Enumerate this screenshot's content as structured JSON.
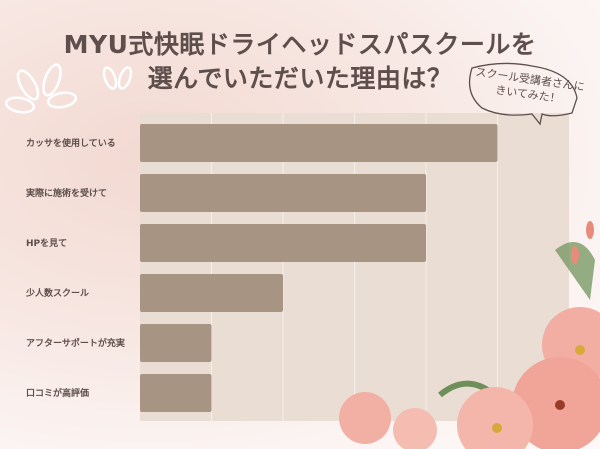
{
  "title_lines": [
    "MYU式快眠ドライヘッドスパスクールを",
    "選んでいただいた理由は？"
  ],
  "bubble": {
    "lines": [
      "スクール受講者さんに",
      "きいてみた！"
    ]
  },
  "colors": {
    "bar": "#a89483",
    "plot_bg": "#e9ddd4",
    "grid": "#f6f0ec",
    "title": "#5e4f4c"
  },
  "chart_data": {
    "type": "bar",
    "orientation": "horizontal",
    "categories": [
      "カッサを使用している",
      "実際に施術を受けて",
      "HPを見て",
      "少人数スクール",
      "アフターサポートが充実",
      "口コミが高評価"
    ],
    "values": [
      5,
      4,
      4,
      2,
      1,
      1
    ],
    "xlim": [
      0,
      6
    ],
    "grid": true,
    "xlabel": "",
    "ylabel": ""
  }
}
